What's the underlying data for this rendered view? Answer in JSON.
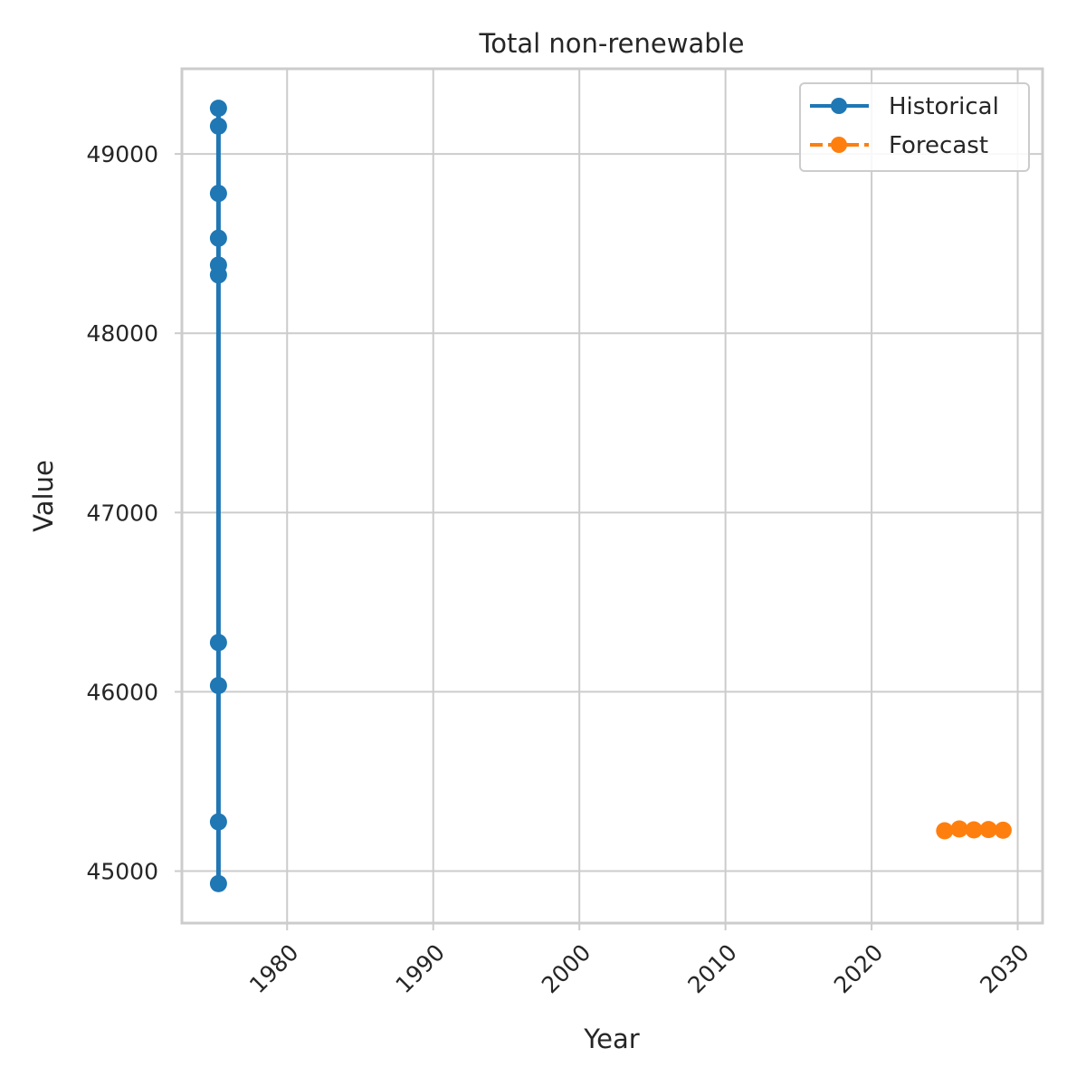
{
  "chart_data": {
    "type": "line",
    "title": "Total non-renewable",
    "xlabel": "Year",
    "ylabel": "Value",
    "xlim": [
      1972.8,
      2031.7
    ],
    "ylim": [
      44710,
      49475
    ],
    "x_ticks": [
      1980,
      1990,
      2000,
      2010,
      2020,
      2030
    ],
    "y_ticks": [
      45000,
      46000,
      47000,
      48000,
      49000
    ],
    "grid": true,
    "legend_position": "top-right",
    "series": [
      {
        "name": "Historical",
        "color": "#1f77b4",
        "line_style": "solid",
        "marker": "circle",
        "points": [
          {
            "x": 1975.3,
            "y": 44930
          },
          {
            "x": 1975.3,
            "y": 45275
          },
          {
            "x": 1975.3,
            "y": 46035
          },
          {
            "x": 1975.3,
            "y": 46275
          },
          {
            "x": 1975.3,
            "y": 48325
          },
          {
            "x": 1975.3,
            "y": 48380
          },
          {
            "x": 1975.3,
            "y": 48530
          },
          {
            "x": 1975.3,
            "y": 48780
          },
          {
            "x": 1975.3,
            "y": 49155
          },
          {
            "x": 1975.3,
            "y": 49255
          }
        ]
      },
      {
        "name": "Forecast",
        "color": "#ff7f0e",
        "line_style": "dashed",
        "marker": "circle",
        "points": [
          {
            "x": 2025,
            "y": 45225
          },
          {
            "x": 2026,
            "y": 45235
          },
          {
            "x": 2027,
            "y": 45230
          },
          {
            "x": 2028,
            "y": 45232
          },
          {
            "x": 2029,
            "y": 45228
          }
        ]
      }
    ]
  }
}
